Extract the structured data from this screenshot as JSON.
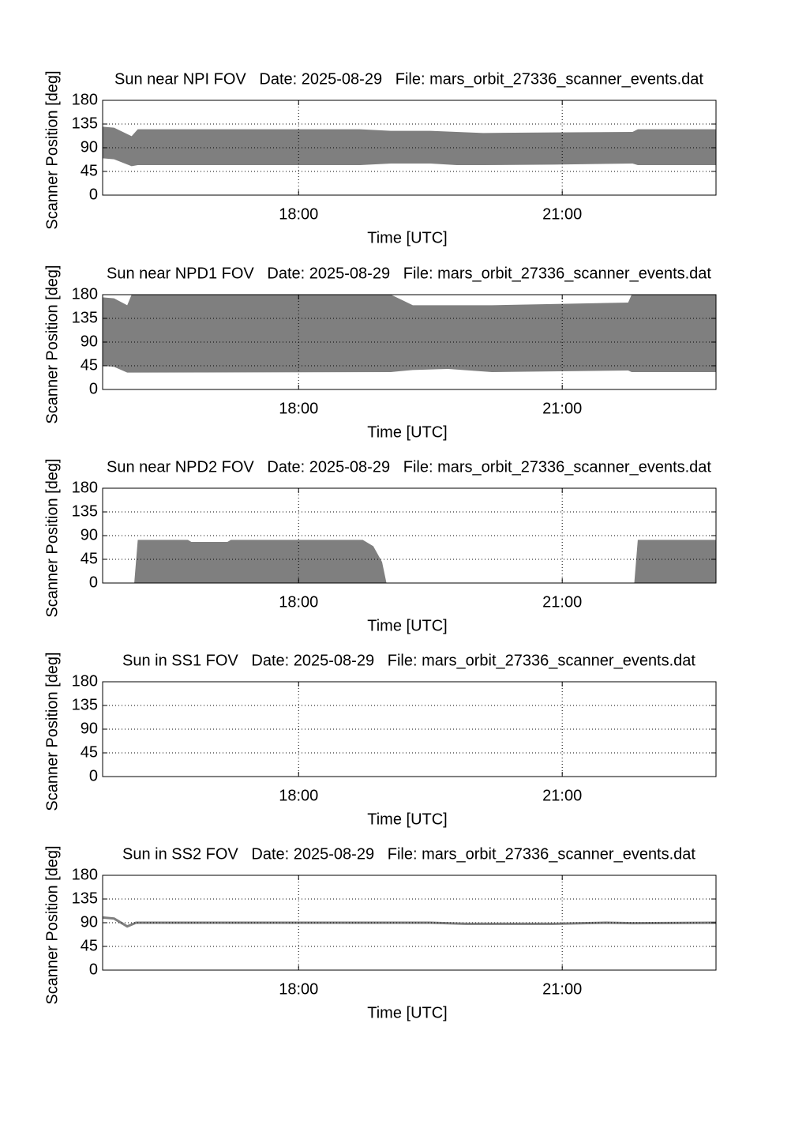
{
  "chart_data": [
    {
      "type": "area",
      "title": "Sun near NPI FOV   Date: 2025-08-29   File: mars_orbit_27336_scanner_events.dat",
      "xlabel": "Time [UTC]",
      "ylabel": "Scanner Position [deg]",
      "color": "#7f7f7f",
      "grid": true,
      "x": [
        15.77,
        15.9,
        16.1,
        16.17,
        17.0,
        18.7,
        19.05,
        19.5,
        19.8,
        20.1,
        20.9,
        21.8,
        21.86,
        22.75
      ],
      "upper": [
        130,
        128,
        112,
        125,
        125,
        125,
        122,
        122,
        120,
        118,
        119,
        120,
        125,
        125
      ],
      "lower": [
        70,
        68,
        55,
        57,
        57,
        57,
        60,
        60,
        57,
        57,
        58,
        60,
        57,
        57
      ],
      "xlim": [
        15.77,
        22.75
      ],
      "xticks": [
        {
          "value": 18,
          "label": "18:00"
        },
        {
          "value": 21,
          "label": "21:00"
        }
      ],
      "ylim": [
        0,
        180
      ],
      "yticks": [
        0,
        45,
        90,
        135,
        180
      ]
    },
    {
      "type": "area",
      "title": "Sun near NPD1 FOV   Date: 2025-08-29   File: mars_orbit_27336_scanner_events.dat",
      "xlabel": "Time [UTC]",
      "ylabel": "Scanner Position [deg]",
      "color": "#7f7f7f",
      "grid": true,
      "x": [
        15.77,
        15.9,
        16.05,
        16.1,
        19.05,
        19.3,
        19.7,
        20.2,
        21.75,
        21.79,
        22.75
      ],
      "upper": [
        175,
        173,
        160,
        180,
        180,
        160,
        160,
        160,
        165,
        180,
        180
      ],
      "lower": [
        45,
        43,
        32,
        32,
        33,
        37,
        39,
        33,
        36,
        33,
        33
      ],
      "xlim": [
        15.77,
        22.75
      ],
      "xticks": [
        {
          "value": 18,
          "label": "18:00"
        },
        {
          "value": 21,
          "label": "21:00"
        }
      ],
      "ylim": [
        0,
        180
      ],
      "yticks": [
        0,
        45,
        90,
        135,
        180
      ]
    },
    {
      "type": "area",
      "title": "Sun near NPD2 FOV   Date: 2025-08-29   File: mars_orbit_27336_scanner_events.dat",
      "xlabel": "Time [UTC]",
      "ylabel": "Scanner Position [deg]",
      "color": "#7f7f7f",
      "grid": true,
      "x": [
        15.77,
        16.13,
        16.17,
        16.74,
        16.78,
        17.19,
        17.23,
        18.73,
        18.85,
        18.95,
        19.0,
        21.82,
        21.86,
        22.75
      ],
      "upper": [
        0,
        0,
        82,
        82,
        78,
        78,
        82,
        82,
        70,
        40,
        0,
        0,
        82,
        82
      ],
      "lower": [
        0,
        0,
        0,
        0,
        0,
        0,
        0,
        0,
        0,
        0,
        0,
        0,
        0,
        0
      ],
      "xlim": [
        15.77,
        22.75
      ],
      "xticks": [
        {
          "value": 18,
          "label": "18:00"
        },
        {
          "value": 21,
          "label": "21:00"
        }
      ],
      "ylim": [
        0,
        180
      ],
      "yticks": [
        0,
        45,
        90,
        135,
        180
      ]
    },
    {
      "type": "area",
      "title": "Sun in SS1 FOV   Date: 2025-08-29   File: mars_orbit_27336_scanner_events.dat",
      "xlabel": "Time [UTC]",
      "ylabel": "Scanner Position [deg]",
      "color": "#7f7f7f",
      "grid": true,
      "x": [],
      "upper": [],
      "lower": [],
      "xlim": [
        15.77,
        22.75
      ],
      "xticks": [
        {
          "value": 18,
          "label": "18:00"
        },
        {
          "value": 21,
          "label": "21:00"
        }
      ],
      "ylim": [
        0,
        180
      ],
      "yticks": [
        0,
        45,
        90,
        135,
        180
      ]
    },
    {
      "type": "line",
      "title": "Sun in SS2 FOV   Date: 2025-08-29   File: mars_orbit_27336_scanner_events.dat",
      "xlabel": "Time [UTC]",
      "ylabel": "Scanner Position [deg]",
      "color": "#7f7f7f",
      "grid": true,
      "x": [
        15.77,
        15.9,
        16.05,
        16.15,
        19.5,
        19.9,
        20.9,
        21.5,
        21.8,
        22.75
      ],
      "values": [
        100,
        98,
        83,
        90,
        90,
        88,
        88,
        90,
        89,
        90
      ],
      "xlim": [
        15.77,
        22.75
      ],
      "xticks": [
        {
          "value": 18,
          "label": "18:00"
        },
        {
          "value": 21,
          "label": "21:00"
        }
      ],
      "ylim": [
        0,
        180
      ],
      "yticks": [
        0,
        45,
        90,
        135,
        180
      ]
    }
  ]
}
